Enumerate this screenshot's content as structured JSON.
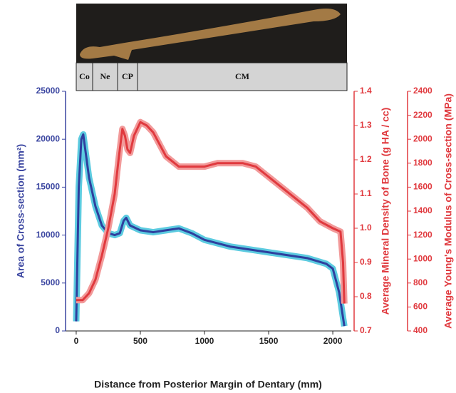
{
  "chart_data": {
    "type": "line",
    "segments": [
      "Co",
      "Ne",
      "CP",
      "CM"
    ],
    "xlabel": "Distance from Posterior Margin of Dentary (mm)",
    "ylabel": "Area of Cross-section (mm²)",
    "y2label": "Average Mineral Density of Bone (g HA / cc)",
    "y3label": "Average Young's Modulus of Cross-section (MPa)",
    "xlim": [
      -83,
      2144
    ],
    "xticks": [
      0,
      500,
      1000,
      1500,
      2000
    ],
    "ylim": [
      0,
      25000
    ],
    "yticks": [
      0,
      5000,
      10000,
      15000,
      20000,
      25000
    ],
    "y2lim": [
      0.7,
      1.4
    ],
    "y2ticks": [
      0.7,
      0.8,
      0.9,
      {
        "value": 1,
        "label": "1.0"
      },
      1.1,
      1.2,
      1.3,
      1.4
    ],
    "y3lim": [
      400,
      2400
    ],
    "y3ticks": [
      400,
      600,
      800,
      1000,
      1200,
      1400,
      1600,
      1800,
      2000,
      2200,
      2400
    ],
    "series": [
      {
        "color": "#2e3f9e",
        "band_color": "#5ccbe0",
        "axis": "y",
        "x": [
          0,
          20,
          40,
          55,
          70,
          100,
          150,
          200,
          250,
          300,
          340,
          370,
          390,
          420,
          500,
          600,
          700,
          800,
          900,
          1000,
          1200,
          1400,
          1600,
          1800,
          1950,
          2000,
          2050,
          2090
        ],
        "values": [
          1000,
          15000,
          20000,
          20500,
          19000,
          16000,
          13000,
          11000,
          10200,
          10000,
          10200,
          11500,
          11800,
          11000,
          10500,
          10300,
          10500,
          10700,
          10200,
          9500,
          8800,
          8400,
          8000,
          7600,
          7000,
          6500,
          4000,
          500
        ]
      },
      {
        "color": "#e0393e",
        "band_color": "#f29a9a",
        "axis": "y2",
        "x": [
          0,
          50,
          100,
          150,
          200,
          250,
          300,
          330,
          360,
          380,
          400,
          420,
          450,
          500,
          550,
          600,
          700,
          800,
          900,
          1000,
          1100,
          1200,
          1300,
          1400,
          1500,
          1600,
          1700,
          1800,
          1900,
          2000,
          2060,
          2080,
          2090
        ],
        "values": [
          0.79,
          0.79,
          0.81,
          0.85,
          0.92,
          1.0,
          1.1,
          1.2,
          1.29,
          1.27,
          1.23,
          1.22,
          1.27,
          1.31,
          1.3,
          1.28,
          1.21,
          1.18,
          1.18,
          1.18,
          1.19,
          1.19,
          1.19,
          1.18,
          1.15,
          1.12,
          1.09,
          1.06,
          1.02,
          1.0,
          0.99,
          0.9,
          0.78
        ]
      }
    ]
  }
}
